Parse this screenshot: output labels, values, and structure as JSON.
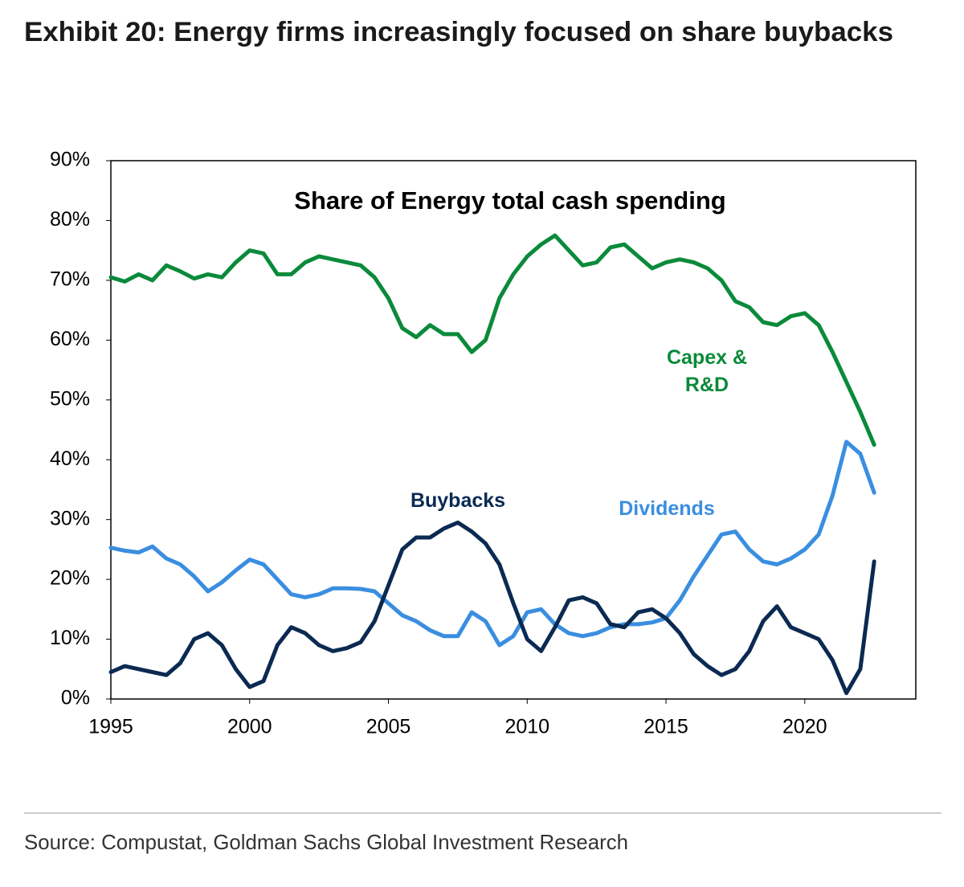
{
  "chart_data": {
    "type": "line",
    "title": "Exhibit 20: Energy firms increasingly focused on share buybacks",
    "subtitle": "Share of Energy total cash spending",
    "source": "Source: Compustat, Goldman Sachs Global Investment Research",
    "x": [
      1995,
      1995.5,
      1996,
      1996.5,
      1997,
      1997.5,
      1998,
      1998.5,
      1999,
      1999.5,
      2000,
      2000.5,
      2001,
      2001.5,
      2002,
      2002.5,
      2003,
      2003.5,
      2004,
      2004.5,
      2005,
      2005.5,
      2006,
      2006.5,
      2007,
      2007.5,
      2008,
      2008.5,
      2009,
      2009.5,
      2010,
      2010.5,
      2011,
      2011.5,
      2012,
      2012.5,
      2013,
      2013.5,
      2014,
      2014.5,
      2015,
      2015.5,
      2016,
      2016.5,
      2017,
      2017.5,
      2018,
      2018.5,
      2019,
      2019.5,
      2020,
      2020.5,
      2021,
      2021.5,
      2022,
      2022.5
    ],
    "series": [
      {
        "name": "Capex & R&D",
        "color": "#0a8a3a",
        "values": [
          70.5,
          69.8,
          71,
          70,
          72.5,
          71.5,
          70.3,
          71,
          70.5,
          73,
          75,
          74.5,
          71,
          71,
          73,
          74,
          73.5,
          73,
          72.5,
          70.5,
          67,
          62,
          60.5,
          62.5,
          61,
          61,
          58,
          60,
          67,
          71,
          74,
          76,
          77.5,
          75,
          72.5,
          73,
          75.5,
          76,
          74,
          72,
          73,
          73.5,
          73,
          72,
          70,
          66.5,
          65.5,
          63,
          62.5,
          64,
          64.5,
          62.5,
          58,
          53,
          48,
          42.5
        ]
      },
      {
        "name": "Dividends",
        "color": "#3a8ee0",
        "values": [
          25.3,
          24.8,
          24.5,
          25.5,
          23.5,
          22.5,
          20.5,
          18,
          19.5,
          21.5,
          23.3,
          22.5,
          20,
          17.5,
          17,
          17.5,
          18.5,
          18.5,
          18.4,
          18,
          16,
          14,
          13,
          11.5,
          10.5,
          10.5,
          14.5,
          13,
          9,
          10.5,
          14.5,
          15,
          12.5,
          11,
          10.5,
          11,
          12,
          12.5,
          12.5,
          12.8,
          13.5,
          16.5,
          20.5,
          24,
          27.5,
          28,
          25,
          23,
          22.5,
          23.5,
          25,
          27.5,
          34,
          43,
          41,
          34.5
        ]
      },
      {
        "name": "Buybacks",
        "color": "#0b2a52",
        "values": [
          4.5,
          5.5,
          5,
          4.5,
          4,
          6,
          10,
          11,
          9,
          5,
          2,
          3,
          9,
          12,
          11,
          9,
          8,
          8.5,
          9.5,
          13,
          19,
          25,
          27,
          27,
          28.5,
          29.5,
          28,
          26,
          22.5,
          16,
          10,
          8,
          12,
          16.5,
          17,
          16,
          12.5,
          12,
          14.5,
          15,
          13.5,
          11,
          7.5,
          5.5,
          4,
          5,
          8,
          13,
          15.5,
          12,
          11,
          10,
          6.5,
          1,
          5,
          23
        ]
      }
    ],
    "xlim": [
      1995,
      2024
    ],
    "xticks": [
      1995,
      2000,
      2005,
      2010,
      2015,
      2020
    ],
    "ylim": [
      0,
      90
    ],
    "yticks": [
      {
        "value": 0,
        "label": "0%"
      },
      {
        "value": 10,
        "label": "10%"
      },
      {
        "value": 20,
        "label": "20%"
      },
      {
        "value": 30,
        "label": "30%"
      },
      {
        "value": 40,
        "label": "40%"
      },
      {
        "value": 50,
        "label": "50%"
      },
      {
        "value": 60,
        "label": "60%"
      },
      {
        "value": 70,
        "label": "70%"
      },
      {
        "value": 80,
        "label": "80%"
      },
      {
        "value": 90,
        "label": "90%"
      }
    ],
    "grid": false
  }
}
